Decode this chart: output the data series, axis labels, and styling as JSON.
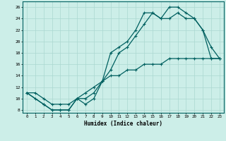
{
  "xlabel": "Humidex (Indice chaleur)",
  "bg_color": "#cceee8",
  "grid_color": "#aad8d0",
  "line_color": "#006060",
  "xlim": [
    -0.5,
    23.5
  ],
  "ylim": [
    7.5,
    27
  ],
  "xticks": [
    0,
    1,
    2,
    3,
    4,
    5,
    6,
    7,
    8,
    9,
    10,
    11,
    12,
    13,
    14,
    15,
    16,
    17,
    18,
    19,
    20,
    21,
    22,
    23
  ],
  "yticks": [
    8,
    10,
    12,
    14,
    16,
    18,
    20,
    22,
    24,
    26
  ],
  "line1_x": [
    0,
    1,
    2,
    3,
    4,
    5,
    6,
    7,
    8,
    9,
    10,
    11,
    12,
    13,
    14,
    15,
    16,
    17,
    18,
    19,
    20,
    21,
    22,
    23
  ],
  "line1_y": [
    11,
    10,
    9,
    8,
    8,
    8,
    10,
    10,
    11,
    13,
    15,
    18,
    19,
    21,
    23,
    25,
    24,
    26,
    26,
    25,
    24,
    22,
    19,
    17
  ],
  "line2_x": [
    0,
    2,
    3,
    4,
    5,
    6,
    7,
    8,
    9,
    10,
    11,
    12,
    13,
    14,
    15,
    16,
    17,
    18,
    19,
    20,
    21,
    22,
    23
  ],
  "line2_y": [
    11,
    9,
    8,
    8,
    8,
    10,
    9,
    10,
    13,
    18,
    19,
    20,
    22,
    25,
    25,
    24,
    24,
    25,
    24,
    24,
    22,
    17,
    17
  ],
  "line3_x": [
    0,
    1,
    2,
    3,
    4,
    5,
    6,
    7,
    8,
    9,
    10,
    11,
    12,
    13,
    14,
    15,
    16,
    17,
    18,
    19,
    20,
    21,
    22,
    23
  ],
  "line3_y": [
    11,
    11,
    10,
    9,
    9,
    9,
    10,
    11,
    12,
    13,
    14,
    14,
    15,
    15,
    16,
    16,
    16,
    17,
    17,
    17,
    17,
    17,
    17,
    17
  ]
}
